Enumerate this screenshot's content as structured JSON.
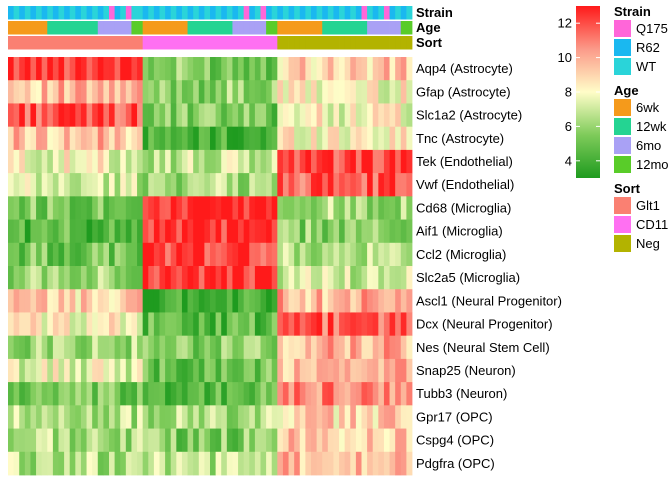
{
  "chart_data": {
    "type": "heatmap",
    "title": "",
    "xlabel": "",
    "ylabel": "",
    "rows": [
      "Aqp4 (Astrocyte)",
      "Gfap (Astrocyte)",
      "Slc1a2 (Astrocyte)",
      "Tnc (Astrocyte)",
      "Tek (Endothelial)",
      "Vwf (Endothelial)",
      "Cd68 (Microglia)",
      "Aif1 (Microglia)",
      "Ccl2 (Microglia)",
      "Slc2a5 (Microglia)",
      "Ascl1 (Neural Progenitor)",
      "Dcx (Neural Progenitor)",
      "Nes (Neural Stem Cell)",
      "Snap25 (Neuron)",
      "Tubb3 (Neuron)",
      "Gpr17 (OPC)",
      "Cspg4 (OPC)",
      "Pdgfra (OPC)"
    ],
    "n_columns": 72,
    "column_groups": [
      {
        "name": "Glt1",
        "count": 24
      },
      {
        "name": "CD11",
        "count": 24
      },
      {
        "name": "Neg",
        "count": 24
      }
    ],
    "block_means": {
      "Glt1": [
        12.7,
        9.5,
        12.0,
        9.5,
        7.8,
        7.0,
        5.5,
        4.5,
        5.2,
        6.2,
        9.0,
        8.2,
        6.2,
        7.5,
        5.0,
        6.5,
        6.3,
        6.5
      ],
      "CD11": [
        5.5,
        5.8,
        5.3,
        4.0,
        6.8,
        6.3,
        12.7,
        12.6,
        12.3,
        12.6,
        3.8,
        4.5,
        5.5,
        5.0,
        4.6,
        6.3,
        5.5,
        6.5
      ],
      "Neg": [
        9.2,
        8.0,
        8.0,
        8.3,
        12.3,
        11.7,
        6.3,
        5.6,
        6.3,
        7.0,
        9.8,
        11.6,
        9.8,
        9.5,
        10.8,
        9.0,
        9.3,
        9.5
      ]
    },
    "color_scale": {
      "min": 3,
      "max": 13,
      "ticks": [
        4,
        6,
        8,
        10,
        12
      ],
      "stops": [
        "#1f9b1f",
        "#7ecb5a",
        "#fffdc8",
        "#fb9a89",
        "#ff1a1a"
      ]
    },
    "annotations": [
      {
        "label": "Strain",
        "values": [
          "R62",
          "WT",
          "R62",
          "WT",
          "R62",
          "WT",
          "R62",
          "WT",
          "R62",
          "WT",
          "R62",
          "WT",
          "R62",
          "WT",
          "R62",
          "WT",
          "R62",
          "WT",
          "Q175",
          "R62",
          "WT",
          "Q175",
          "WT",
          "WT",
          "R62",
          "WT",
          "R62",
          "WT",
          "R62",
          "WT",
          "R62",
          "WT",
          "R62",
          "WT",
          "R62",
          "WT",
          "R62",
          "WT",
          "R62",
          "WT",
          "R62",
          "WT",
          "Q175",
          "R62",
          "WT",
          "Q175",
          "R62",
          "WT",
          "R62",
          "WT",
          "R62",
          "WT",
          "R62",
          "WT",
          "R62",
          "WT",
          "R62",
          "WT",
          "R62",
          "WT",
          "R62",
          "WT",
          "R62",
          "Q175",
          "WT",
          "R62",
          "WT",
          "Q175",
          "R62",
          "WT",
          "R62",
          "WT"
        ],
        "legend": [
          {
            "name": "Q175",
            "color": "#ff66d9"
          },
          {
            "name": "R62",
            "color": "#1ab8f0"
          },
          {
            "name": "WT",
            "color": "#2ad4d9"
          }
        ]
      },
      {
        "label": "Age",
        "values": [
          "6wk",
          "6wk",
          "6wk",
          "6wk",
          "6wk",
          "6wk",
          "6wk",
          "12wk",
          "12wk",
          "12wk",
          "12wk",
          "12wk",
          "12wk",
          "12wk",
          "12wk",
          "12wk",
          "6mo",
          "6mo",
          "6mo",
          "6mo",
          "6mo",
          "6mo",
          "12mo",
          "12mo",
          "6wk",
          "6wk",
          "6wk",
          "6wk",
          "6wk",
          "6wk",
          "6wk",
          "6wk",
          "12wk",
          "12wk",
          "12wk",
          "12wk",
          "12wk",
          "12wk",
          "12wk",
          "12wk",
          "6mo",
          "6mo",
          "6mo",
          "6mo",
          "6mo",
          "6mo",
          "12mo",
          "12mo",
          "6wk",
          "6wk",
          "6wk",
          "6wk",
          "6wk",
          "6wk",
          "6wk",
          "6wk",
          "12wk",
          "12wk",
          "12wk",
          "12wk",
          "12wk",
          "12wk",
          "12wk",
          "12wk",
          "6mo",
          "6mo",
          "6mo",
          "6mo",
          "6mo",
          "6mo",
          "12mo",
          "12mo"
        ],
        "legend": [
          {
            "name": "6wk",
            "color": "#f59a1b"
          },
          {
            "name": "12wk",
            "color": "#24d492"
          },
          {
            "name": "6mo",
            "color": "#a9a1f5"
          },
          {
            "name": "12mo",
            "color": "#59cc29"
          }
        ]
      },
      {
        "label": "Sort",
        "values": [
          "Glt1",
          "Glt1",
          "Glt1",
          "Glt1",
          "Glt1",
          "Glt1",
          "Glt1",
          "Glt1",
          "Glt1",
          "Glt1",
          "Glt1",
          "Glt1",
          "Glt1",
          "Glt1",
          "Glt1",
          "Glt1",
          "Glt1",
          "Glt1",
          "Glt1",
          "Glt1",
          "Glt1",
          "Glt1",
          "Glt1",
          "Glt1",
          "CD11",
          "CD11",
          "CD11",
          "CD11",
          "CD11",
          "CD11",
          "CD11",
          "CD11",
          "CD11",
          "CD11",
          "CD11",
          "CD11",
          "CD11",
          "CD11",
          "CD11",
          "CD11",
          "CD11",
          "CD11",
          "CD11",
          "CD11",
          "CD11",
          "CD11",
          "CD11",
          "CD11",
          "Neg",
          "Neg",
          "Neg",
          "Neg",
          "Neg",
          "Neg",
          "Neg",
          "Neg",
          "Neg",
          "Neg",
          "Neg",
          "Neg",
          "Neg",
          "Neg",
          "Neg",
          "Neg",
          "Neg",
          "Neg",
          "Neg",
          "Neg",
          "Neg",
          "Neg",
          "Neg",
          "Neg"
        ],
        "legend": [
          {
            "name": "Glt1",
            "color": "#fa8072"
          },
          {
            "name": "CD11",
            "color": "#ff70f2"
          },
          {
            "name": "Neg",
            "color": "#b3b300"
          }
        ]
      }
    ]
  }
}
